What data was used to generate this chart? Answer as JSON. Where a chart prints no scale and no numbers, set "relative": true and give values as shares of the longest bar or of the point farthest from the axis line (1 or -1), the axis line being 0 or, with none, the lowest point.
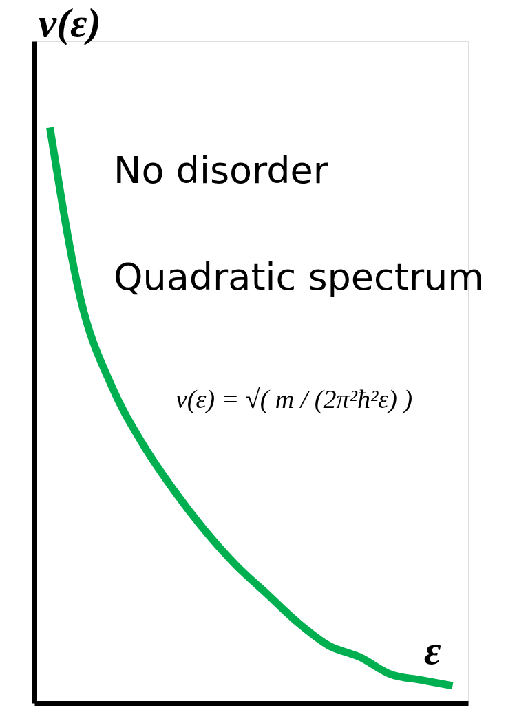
{
  "chart_data": {
    "type": "line",
    "relative": true,
    "xlabel": "ε",
    "ylabel": "ν(ε)",
    "categories": [
      null,
      null,
      null,
      null,
      null,
      null,
      null,
      null,
      null,
      null,
      null,
      null,
      null,
      null
    ],
    "series": [
      {
        "color": "#00b050",
        "values": [
          1,
          0.7,
          0.55,
          0.45,
          0.37,
          0.3,
          0.24,
          0.19,
          0.14,
          0.1,
          0.08,
          0.05,
          0.04,
          0.03
        ]
      }
    ],
    "annotations": [
      "No disorder",
      "Quadratic spectrum",
      "ν(ε) = √( m / (2π²ħ²ε) )"
    ],
    "grid": false
  }
}
